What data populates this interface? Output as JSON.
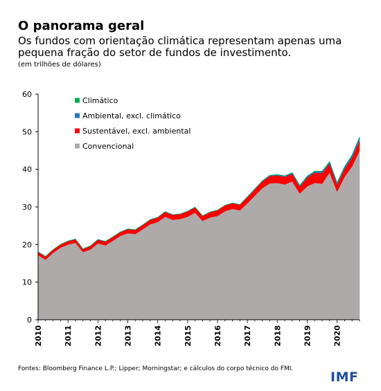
{
  "title": "O panorama geral",
  "subtitle": "Os fundos com orientação climática representam apenas uma pequena fração do setor de fundos de investimento.",
  "unit_note": "(em trilhões de dólares)",
  "source": "Fontes: Bloomberg Finance L.P.; Lipper; Morningstar; e cálculos do corpo técnico do FMI.",
  "logo": "IMF",
  "chart_data": {
    "type": "area",
    "stacked": true,
    "x": [
      2010.0,
      2010.25,
      2010.5,
      2010.75,
      2011.0,
      2011.25,
      2011.5,
      2011.75,
      2012.0,
      2012.25,
      2012.5,
      2012.75,
      2013.0,
      2013.25,
      2013.5,
      2013.75,
      2014.0,
      2014.25,
      2014.5,
      2014.75,
      2015.0,
      2015.25,
      2015.5,
      2015.75,
      2016.0,
      2016.25,
      2016.5,
      2016.75,
      2017.0,
      2017.25,
      2017.5,
      2017.75,
      2018.0,
      2018.25,
      2018.5,
      2018.75,
      2019.0,
      2019.25,
      2019.5,
      2019.75,
      2020.0,
      2020.25,
      2020.5,
      2020.75
    ],
    "x_tick_labels": [
      "2010",
      "2011",
      "2012",
      "2013",
      "2014",
      "2015",
      "2016",
      "2017",
      "2018",
      "2019",
      "2020"
    ],
    "x_ticks": [
      2010,
      2011,
      2012,
      2013,
      2014,
      2015,
      2016,
      2017,
      2018,
      2019,
      2020
    ],
    "series": [
      {
        "name": "Convencional",
        "color": "#aeaaaa",
        "values": [
          17.2,
          16.0,
          17.8,
          19.2,
          20.0,
          20.5,
          18.0,
          18.7,
          20.3,
          19.8,
          21.0,
          22.3,
          23.0,
          22.8,
          24.1,
          25.4,
          26.0,
          27.4,
          26.6,
          26.8,
          27.4,
          28.5,
          26.3,
          27.2,
          27.6,
          28.9,
          29.5,
          29.1,
          31.0,
          33.0,
          35.0,
          36.3,
          36.4,
          36.0,
          36.8,
          33.6,
          35.5,
          36.4,
          36.2,
          39.2,
          34.1,
          38.0,
          40.8,
          45.0
        ]
      },
      {
        "name": "Sustentável, excl. ambiental",
        "color": "#ff0000",
        "values": [
          0.8,
          0.8,
          0.8,
          0.8,
          0.9,
          0.9,
          0.8,
          0.9,
          1.0,
          1.0,
          1.0,
          1.0,
          1.1,
          1.1,
          1.1,
          1.2,
          1.2,
          1.3,
          1.3,
          1.3,
          1.4,
          1.4,
          1.3,
          1.4,
          1.5,
          1.5,
          1.5,
          1.5,
          1.6,
          1.7,
          1.8,
          1.9,
          2.0,
          2.0,
          2.0,
          1.8,
          2.3,
          2.7,
          2.8,
          2.3,
          1.8,
          2.1,
          2.3,
          2.6
        ]
      },
      {
        "name": "Ambiental, excl. climático",
        "color": "#2e75b6",
        "values": [
          0.05,
          0.05,
          0.05,
          0.05,
          0.05,
          0.05,
          0.05,
          0.05,
          0.05,
          0.05,
          0.05,
          0.05,
          0.05,
          0.05,
          0.05,
          0.05,
          0.05,
          0.05,
          0.05,
          0.05,
          0.05,
          0.05,
          0.05,
          0.05,
          0.05,
          0.05,
          0.05,
          0.05,
          0.1,
          0.1,
          0.15,
          0.2,
          0.2,
          0.25,
          0.3,
          0.3,
          0.35,
          0.4,
          0.45,
          0.5,
          0.5,
          0.55,
          0.6,
          0.9
        ]
      },
      {
        "name": "Climático",
        "color": "#00b050",
        "values": [
          0.01,
          0.01,
          0.01,
          0.01,
          0.01,
          0.01,
          0.01,
          0.01,
          0.01,
          0.01,
          0.01,
          0.01,
          0.01,
          0.01,
          0.01,
          0.01,
          0.01,
          0.01,
          0.01,
          0.01,
          0.01,
          0.01,
          0.01,
          0.01,
          0.01,
          0.01,
          0.01,
          0.01,
          0.02,
          0.02,
          0.02,
          0.03,
          0.03,
          0.03,
          0.04,
          0.04,
          0.05,
          0.06,
          0.07,
          0.08,
          0.08,
          0.1,
          0.12,
          0.15
        ]
      }
    ],
    "legend_order": [
      "Climático",
      "Ambiental, excl. climático",
      "Sustentável, excl. ambiental",
      "Convencional"
    ],
    "legend_position": "top-left",
    "ylim": [
      0,
      60
    ],
    "y_ticks": [
      0,
      10,
      20,
      30,
      40,
      50,
      60
    ],
    "xlim": [
      2010,
      2020.75
    ],
    "grid": false
  }
}
